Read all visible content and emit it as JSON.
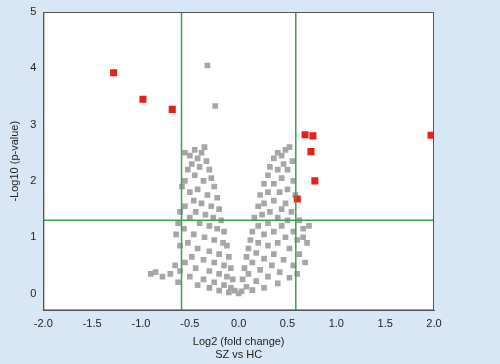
{
  "chart_data": {
    "type": "scatter",
    "x_label": "Log2 (fold change)",
    "y_label": "-Log10 (p-value)",
    "caption": "SZ vs HC",
    "xlim": [
      -2,
      2
    ],
    "ylim": [
      -0.3,
      5
    ],
    "xticks": [
      {
        "value": -2,
        "label": "-2.0"
      },
      {
        "value": -1.5,
        "label": "-1.5"
      },
      {
        "value": -1,
        "label": "-1.0"
      },
      {
        "value": -0.5,
        "label": "-0.5"
      },
      {
        "value": 0,
        "label": "0.0"
      },
      {
        "value": 0.5,
        "label": "0.5"
      },
      {
        "value": 1,
        "label": "1.0"
      },
      {
        "value": 1.5,
        "label": "1.5"
      },
      {
        "value": 2,
        "label": "2.0"
      }
    ],
    "yticks": [
      0,
      1,
      2,
      3,
      4,
      5
    ],
    "grid": false,
    "vlines": [
      -0.585,
      0.585
    ],
    "hlines": [
      1.301
    ],
    "series": [
      {
        "color": "#a6a6a6",
        "marker": "square",
        "x": [
          -0.32,
          -0.24,
          -0.55,
          -0.5,
          -0.45,
          -0.42,
          -0.38,
          -0.35,
          -0.48,
          -0.52,
          -0.4,
          -0.33,
          -0.3,
          -0.45,
          -0.55,
          -0.58,
          -0.36,
          -0.28,
          -0.25,
          -0.42,
          -0.5,
          -0.32,
          -0.22,
          -0.46,
          -0.38,
          -0.28,
          -0.2,
          -0.55,
          -0.6,
          -0.44,
          -0.34,
          -0.26,
          -0.18,
          -0.5,
          -0.62,
          -0.4,
          -0.3,
          -0.22,
          -0.15,
          -0.56,
          -0.64,
          -0.46,
          -0.35,
          -0.25,
          -0.16,
          -0.12,
          -0.52,
          -0.6,
          -0.42,
          -0.3,
          -0.2,
          -0.1,
          -0.48,
          -0.36,
          -0.25,
          -0.15,
          -0.08,
          -0.55,
          -0.44,
          -0.3,
          -0.2,
          -0.12,
          -0.06,
          -0.5,
          -0.36,
          -0.25,
          -0.15,
          -0.08,
          -0.04,
          -0.6,
          -0.65,
          -0.42,
          -0.3,
          -0.2,
          -0.1,
          -0.7,
          -0.62,
          -0.85,
          -0.78,
          -0.9,
          0.52,
          0.48,
          0.44,
          0.4,
          0.36,
          0.55,
          0.46,
          0.5,
          0.4,
          0.32,
          0.3,
          0.44,
          0.56,
          0.36,
          0.26,
          0.5,
          0.42,
          0.3,
          0.22,
          0.58,
          0.36,
          0.26,
          0.48,
          0.2,
          0.44,
          0.32,
          0.54,
          0.24,
          0.16,
          0.4,
          0.5,
          0.62,
          0.3,
          0.2,
          0.44,
          0.14,
          0.36,
          0.56,
          0.66,
          0.26,
          0.48,
          0.12,
          0.2,
          0.4,
          0.6,
          0.3,
          0.1,
          0.52,
          0.18,
          0.36,
          0.62,
          0.08,
          0.26,
          0.46,
          0.14,
          0.56,
          0.34,
          0.06,
          0.22,
          0.42,
          0.1,
          0.3,
          0.52,
          0.04,
          0.18,
          0.4,
          0.08,
          0.26,
          0.14,
          0.03,
          0.0,
          0.6,
          0.68,
          0.7,
          0.66,
          0.72
        ],
        "values": [
          4.05,
          3.33,
          2.5,
          2.45,
          2.55,
          2.4,
          2.5,
          2.6,
          2.3,
          2.2,
          2.25,
          2.35,
          2.2,
          2.1,
          2.0,
          1.9,
          2.0,
          2.05,
          1.9,
          1.85,
          1.8,
          1.75,
          1.7,
          1.65,
          1.6,
          1.55,
          1.5,
          1.55,
          1.45,
          1.45,
          1.4,
          1.35,
          1.3,
          1.35,
          1.25,
          1.25,
          1.2,
          1.15,
          1.1,
          1.15,
          1.05,
          1.05,
          1.0,
          0.95,
          0.9,
          0.85,
          0.9,
          0.85,
          0.8,
          0.75,
          0.7,
          0.65,
          0.65,
          0.6,
          0.55,
          0.5,
          0.45,
          0.55,
          0.45,
          0.4,
          0.35,
          0.3,
          0.25,
          0.3,
          0.25,
          0.2,
          0.15,
          0.1,
          0.05,
          0.4,
          0.5,
          0.15,
          0.1,
          0.05,
          0.02,
          0.35,
          0.2,
          0.38,
          0.3,
          0.35,
          2.6,
          2.55,
          2.45,
          2.5,
          2.4,
          2.35,
          2.3,
          2.2,
          2.2,
          2.25,
          2.1,
          2.05,
          2.0,
          1.95,
          1.95,
          1.85,
          1.8,
          1.8,
          1.75,
          1.75,
          1.65,
          1.6,
          1.6,
          1.55,
          1.5,
          1.45,
          1.45,
          1.4,
          1.35,
          1.35,
          1.3,
          1.3,
          1.25,
          1.2,
          1.2,
          1.1,
          1.1,
          1.1,
          1.15,
          1.05,
          1.0,
          0.95,
          0.9,
          0.9,
          0.95,
          0.85,
          0.8,
          0.8,
          0.72,
          0.7,
          0.7,
          0.65,
          0.62,
          0.6,
          0.55,
          0.5,
          0.5,
          0.45,
          0.42,
          0.38,
          0.35,
          0.3,
          0.28,
          0.25,
          0.22,
          0.18,
          0.12,
          0.1,
          0.06,
          0.04,
          0.0,
          0.35,
          0.55,
          0.9,
          1.0,
          1.2
        ]
      },
      {
        "color": "#e8201c",
        "marker": "square",
        "x": [
          -1.28,
          -0.98,
          -0.68,
          0.68,
          0.76,
          0.74,
          0.78,
          0.6,
          1.97
        ],
        "values": [
          3.92,
          3.45,
          3.27,
          2.82,
          2.8,
          2.52,
          2.0,
          1.68,
          2.81
        ]
      }
    ]
  }
}
